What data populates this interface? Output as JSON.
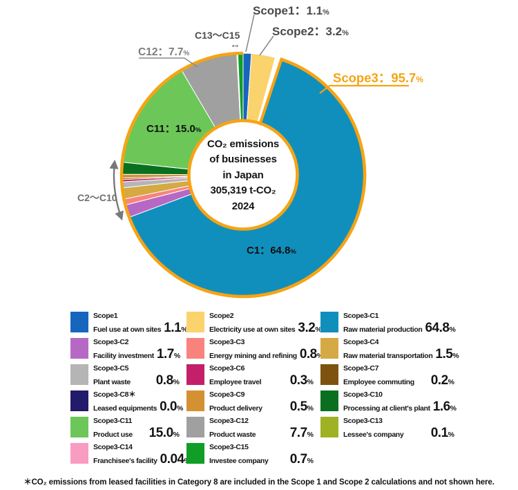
{
  "icons": {
    "range_arrow": "↔"
  },
  "chart_data": {
    "type": "pie",
    "subtype": "donut",
    "center_lines": [
      "CO₂ emissions",
      "of businesses",
      "in Japan",
      "305,319 t-CO₂",
      "2024"
    ],
    "total_emissions": "305,319 t-CO₂",
    "year": "2024",
    "unit": "%",
    "accent_color": "#F6A414",
    "groups": {
      "scope3": {
        "label": "Scope3",
        "display_pct": "95.7",
        "members": "C1–C15"
      }
    },
    "segments": [
      {
        "key": "scope1",
        "name": "Scope1",
        "desc": "Fuel use at own sites",
        "value": 1.1,
        "display": "1.1",
        "color": "#1766BE"
      },
      {
        "key": "scope2",
        "name": "Scope2",
        "desc": "Electricity use at own sites",
        "value": 3.2,
        "display": "3.2",
        "color": "#FBD36C"
      },
      {
        "key": "c1",
        "name": "Scope3-C1",
        "desc": "Raw material production",
        "value": 64.8,
        "display": "64.8",
        "color": "#118FBC"
      },
      {
        "key": "c2",
        "name": "Scope3-C2",
        "desc": "Facility investment",
        "value": 1.7,
        "display": "1.7",
        "color": "#B669C4"
      },
      {
        "key": "c3",
        "name": "Scope3-C3",
        "desc": "Energy mining and refining",
        "value": 0.8,
        "display": "0.8",
        "color": "#F8837D"
      },
      {
        "key": "c4",
        "name": "Scope3-C4",
        "desc": "Raw material transportation",
        "value": 1.5,
        "display": "1.5",
        "color": "#D5A943"
      },
      {
        "key": "c5",
        "name": "Scope3-C5",
        "desc": "Plant waste",
        "value": 0.8,
        "display": "0.8",
        "color": "#B5B5B5"
      },
      {
        "key": "c6",
        "name": "Scope3-C6",
        "desc": "Employee travel",
        "value": 0.3,
        "display": "0.3",
        "color": "#C32069"
      },
      {
        "key": "c7",
        "name": "Scope3-C7",
        "desc": "Employee commuting",
        "value": 0.2,
        "display": "0.2",
        "color": "#7E530F"
      },
      {
        "key": "c8",
        "name": "Scope3-C8＊",
        "desc": "Leased equipments",
        "value": 0.0,
        "display": "0.0",
        "color": "#221A6A"
      },
      {
        "key": "c9",
        "name": "Scope3-C9",
        "desc": "Product delivery",
        "value": 0.5,
        "display": "0.5",
        "color": "#D49132"
      },
      {
        "key": "c10",
        "name": "Scope3-C10",
        "desc": "Processing at client's plant",
        "value": 1.6,
        "display": "1.6",
        "color": "#0A7020"
      },
      {
        "key": "c11",
        "name": "Scope3-C11",
        "desc": "Product use",
        "value": 15.0,
        "display": "15.0",
        "color": "#6CC758"
      },
      {
        "key": "c12",
        "name": "Scope3-C12",
        "desc": "Product waste",
        "value": 7.7,
        "display": "7.7",
        "color": "#A0A0A0"
      },
      {
        "key": "c13",
        "name": "Scope3-C13",
        "desc": "Lessee's company",
        "value": 0.1,
        "display": "0.1",
        "color": "#9FB223"
      },
      {
        "key": "c14",
        "name": "Scope3-C14",
        "desc": "Franchisee's facility",
        "value": 0.04,
        "display": "0.04",
        "color": "#F89CC2"
      },
      {
        "key": "c15",
        "name": "Scope3-C15",
        "desc": "Investee company",
        "value": 0.7,
        "display": "0.7",
        "color": "#119E27"
      }
    ],
    "callouts": {
      "scope1": {
        "prefix": "Scope1：",
        "value": "1.1",
        "unit": "%"
      },
      "scope2": {
        "prefix": "Scope2：",
        "value": "3.2",
        "unit": "%"
      },
      "scope3": {
        "prefix": "Scope3：",
        "value": "95.7",
        "unit": "%"
      },
      "c1": {
        "prefix": "C1：",
        "value": "64.8",
        "unit": "%"
      },
      "c11": {
        "prefix": "C11：",
        "value": "15.0",
        "unit": "%"
      },
      "c12": {
        "prefix": "C12：",
        "value": "7.7",
        "unit": "%"
      },
      "c13_c15": {
        "prefix": "C13～C15"
      },
      "c2_c10": {
        "prefix": "C2～C10"
      }
    }
  },
  "footnote": "＊CO₂ emissions from leased facilities in Category 8 are included in the Scope 1 and Scope 2 calculations and not shown here."
}
